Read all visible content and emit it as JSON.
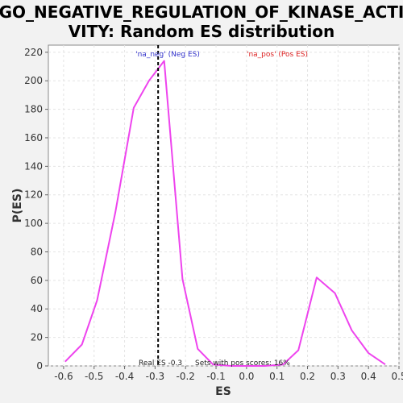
{
  "chart_data": {
    "type": "line",
    "title_line1": "GO_NEGATIVE_REGULATION_OF_KINASE_ACTI",
    "title_line2": "VITY: Random ES distribution",
    "xlabel": "ES",
    "ylabel": "P(ES)",
    "xlim": [
      -0.65,
      0.5
    ],
    "ylim": [
      0,
      225
    ],
    "xticks": [
      -0.6,
      -0.5,
      -0.4,
      -0.3,
      -0.2,
      -0.1,
      0.0,
      0.1,
      0.2,
      0.3,
      0.4,
      0.5
    ],
    "xtick_labels": [
      "-0.6",
      "-0.5",
      "-0.4",
      "-0.3",
      "-0.2",
      "-0.1",
      "0.0",
      "0.1",
      "0.2",
      "0.3",
      "0.4",
      "0.5"
    ],
    "yticks": [
      0,
      20,
      40,
      60,
      80,
      100,
      120,
      140,
      160,
      180,
      200,
      220
    ],
    "ytick_labels": [
      "0",
      "20",
      "40",
      "60",
      "80",
      "100",
      "120",
      "140",
      "160",
      "180",
      "200",
      "220"
    ],
    "grid": true,
    "series": [
      {
        "color": "#ee44ee",
        "x": [
          -0.595,
          -0.54,
          -0.49,
          -0.43,
          -0.37,
          -0.32,
          -0.27,
          -0.21,
          -0.16,
          -0.11,
          -0.05,
          0.0,
          0.06,
          0.12,
          0.17,
          0.23,
          0.29,
          0.345,
          0.4,
          0.455
        ],
        "y": [
          3,
          15,
          46,
          108,
          181,
          200,
          214,
          61,
          12,
          1,
          0,
          0,
          0,
          1,
          11,
          62,
          51,
          25,
          9,
          1
        ]
      }
    ],
    "real_es": -0.29,
    "annotations": {
      "neg_label": "'na_neg' (Neg ES)",
      "pos_label": "'na_pos' (Pos ES)",
      "real_es_label": "Real ES -0.3",
      "sets_label": "Sets with pos scores: 16%",
      "neg_color": "#3333cc",
      "pos_color": "#dd2222"
    }
  }
}
